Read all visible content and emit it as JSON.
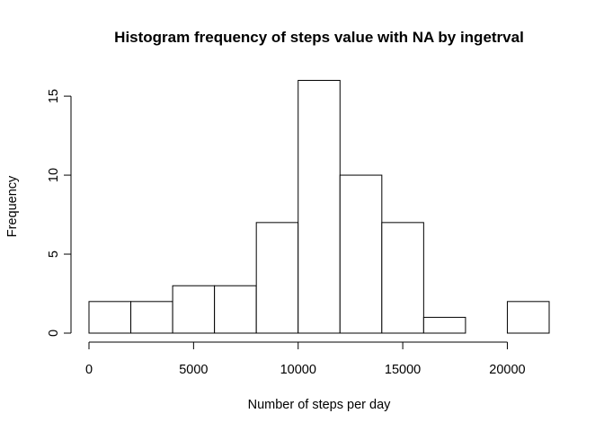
{
  "chart_data": {
    "type": "bar",
    "subtype": "histogram",
    "title": "Histogram frequency of steps value with NA by ingetrval",
    "xlabel": "Number of steps per day",
    "ylabel": "Frequency",
    "bins": [
      {
        "start": 0,
        "end": 2000,
        "count": 2
      },
      {
        "start": 2000,
        "end": 4000,
        "count": 2
      },
      {
        "start": 4000,
        "end": 6000,
        "count": 3
      },
      {
        "start": 6000,
        "end": 8000,
        "count": 3
      },
      {
        "start": 8000,
        "end": 10000,
        "count": 7
      },
      {
        "start": 10000,
        "end": 12000,
        "count": 16
      },
      {
        "start": 12000,
        "end": 14000,
        "count": 10
      },
      {
        "start": 14000,
        "end": 16000,
        "count": 7
      },
      {
        "start": 16000,
        "end": 18000,
        "count": 1
      },
      {
        "start": 18000,
        "end": 20000,
        "count": 0
      },
      {
        "start": 20000,
        "end": 22000,
        "count": 2
      }
    ],
    "xlim": [
      0,
      22000
    ],
    "ylim": [
      0,
      16
    ],
    "xticks": [
      0,
      5000,
      10000,
      15000,
      20000
    ],
    "yticks": [
      0,
      5,
      10,
      15
    ],
    "grid": false,
    "bar_fill": "#ffffff",
    "bar_stroke": "#000000"
  }
}
